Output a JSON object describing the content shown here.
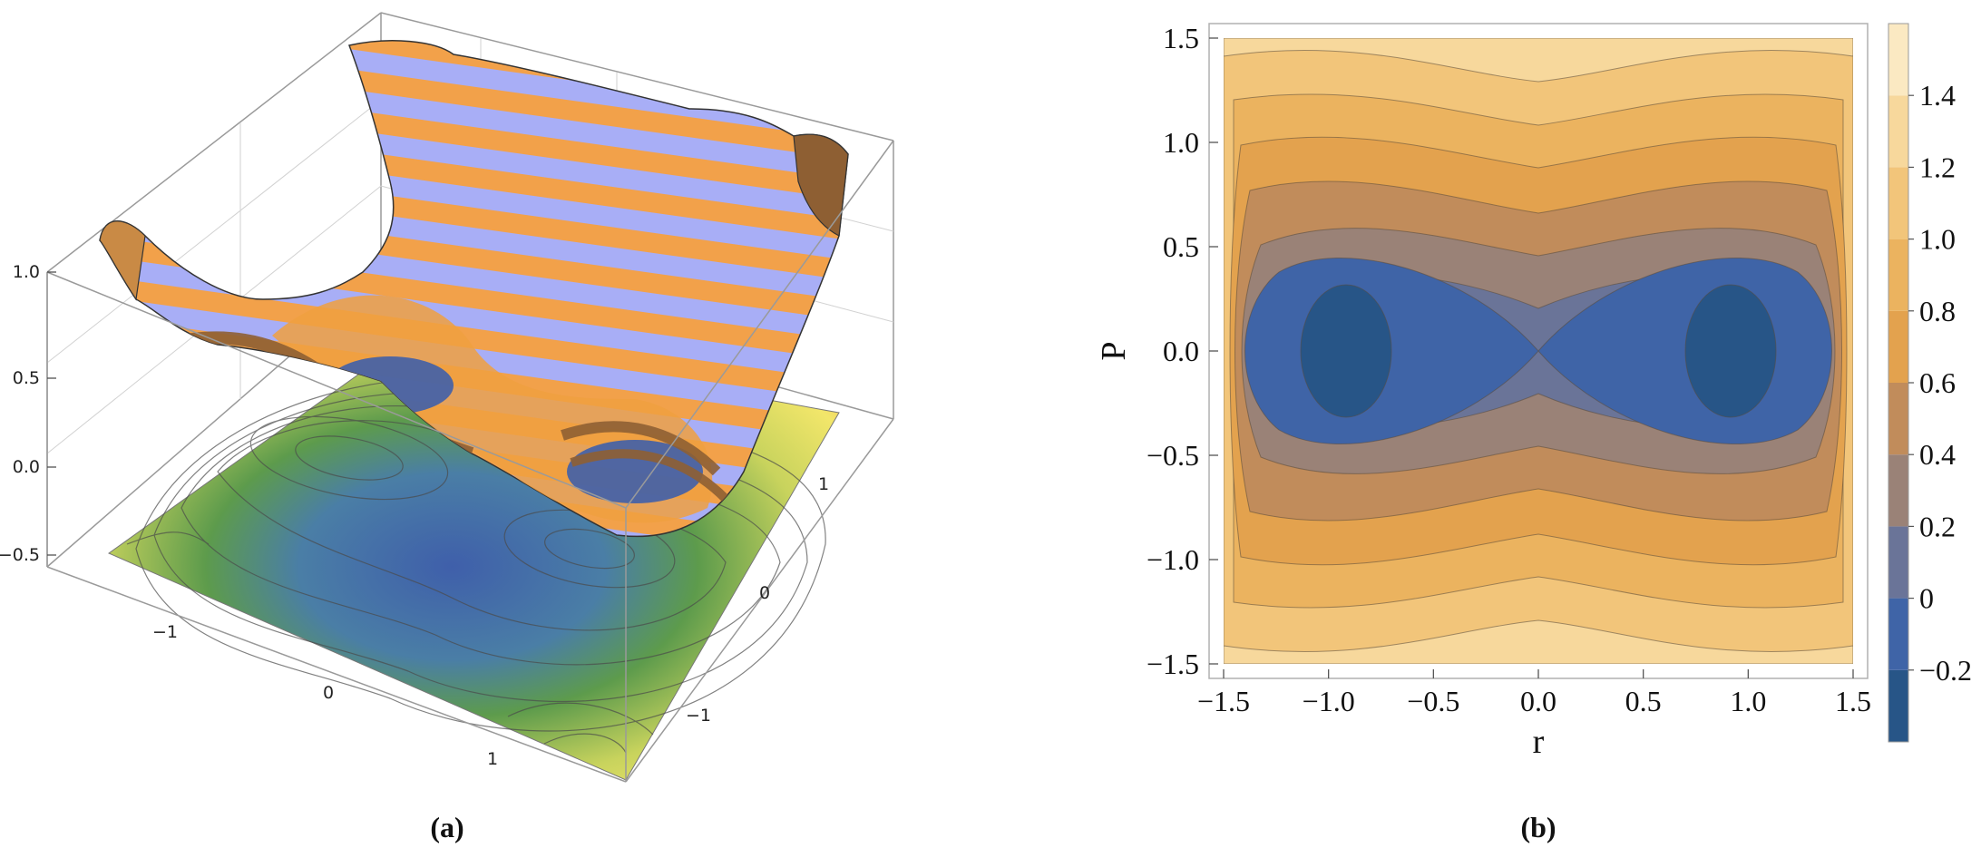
{
  "panels": {
    "a": "(a)",
    "b": "(b)"
  },
  "colors": {
    "surface_band_light": "#a8aef6",
    "surface_band_orange": "#f2a14a",
    "surface_band_dark": "#8e5f33",
    "floor_low": "#3f5faa",
    "floor_mid": "#5d9b4c",
    "floor_high": "#f2e66a",
    "floor_top": "#d63a2b",
    "contour_levels_2d": [
      "#275587",
      "#3f64a7",
      "#6a7498",
      "#9a8277",
      "#c18c5b",
      "#e3a24e",
      "#ebb35f",
      "#f2c57a",
      "#f7d89c",
      "#fbe9c2"
    ]
  },
  "chart_data": [
    {
      "type": "surface3d",
      "panel": "(a)",
      "z_ticks": [
        "1.0",
        "0.5",
        "0.0",
        "−0.5"
      ],
      "x_ticks": [
        "−1",
        "0",
        "1"
      ],
      "y_ticks": [
        "1",
        "0",
        "−1"
      ],
      "x_range": [
        -1.5,
        1.5
      ],
      "y_range": [
        -1.5,
        1.5
      ],
      "z_range": [
        -0.6,
        1.0
      ],
      "note_shape": "double-well surface with striped bands, projected filled contours on floor"
    },
    {
      "type": "contour",
      "panel": "(b)",
      "xlabel": "r",
      "ylabel": "P",
      "x_ticks": [
        "−1.5",
        "−1.0",
        "−0.5",
        "0.0",
        "0.5",
        "1.0",
        "1.5"
      ],
      "y_ticks": [
        "1.5",
        "1.0",
        "0.5",
        "0.0",
        "−0.5",
        "−1.0",
        "−1.5"
      ],
      "xlim": [
        -1.5,
        1.5
      ],
      "ylim": [
        -1.5,
        1.5
      ],
      "wells": [
        {
          "r": -1.0,
          "P": 0.0
        },
        {
          "r": 1.0,
          "P": 0.0
        }
      ],
      "saddle": {
        "r": 0.0,
        "P": 0.0
      },
      "colorbar_ticks": [
        "1.4",
        "1.2",
        "1.0",
        "0.8",
        "0.6",
        "0.4",
        "0.2",
        "0",
        "−0.2"
      ],
      "colorbar_range": [
        -0.4,
        1.6
      ]
    }
  ]
}
